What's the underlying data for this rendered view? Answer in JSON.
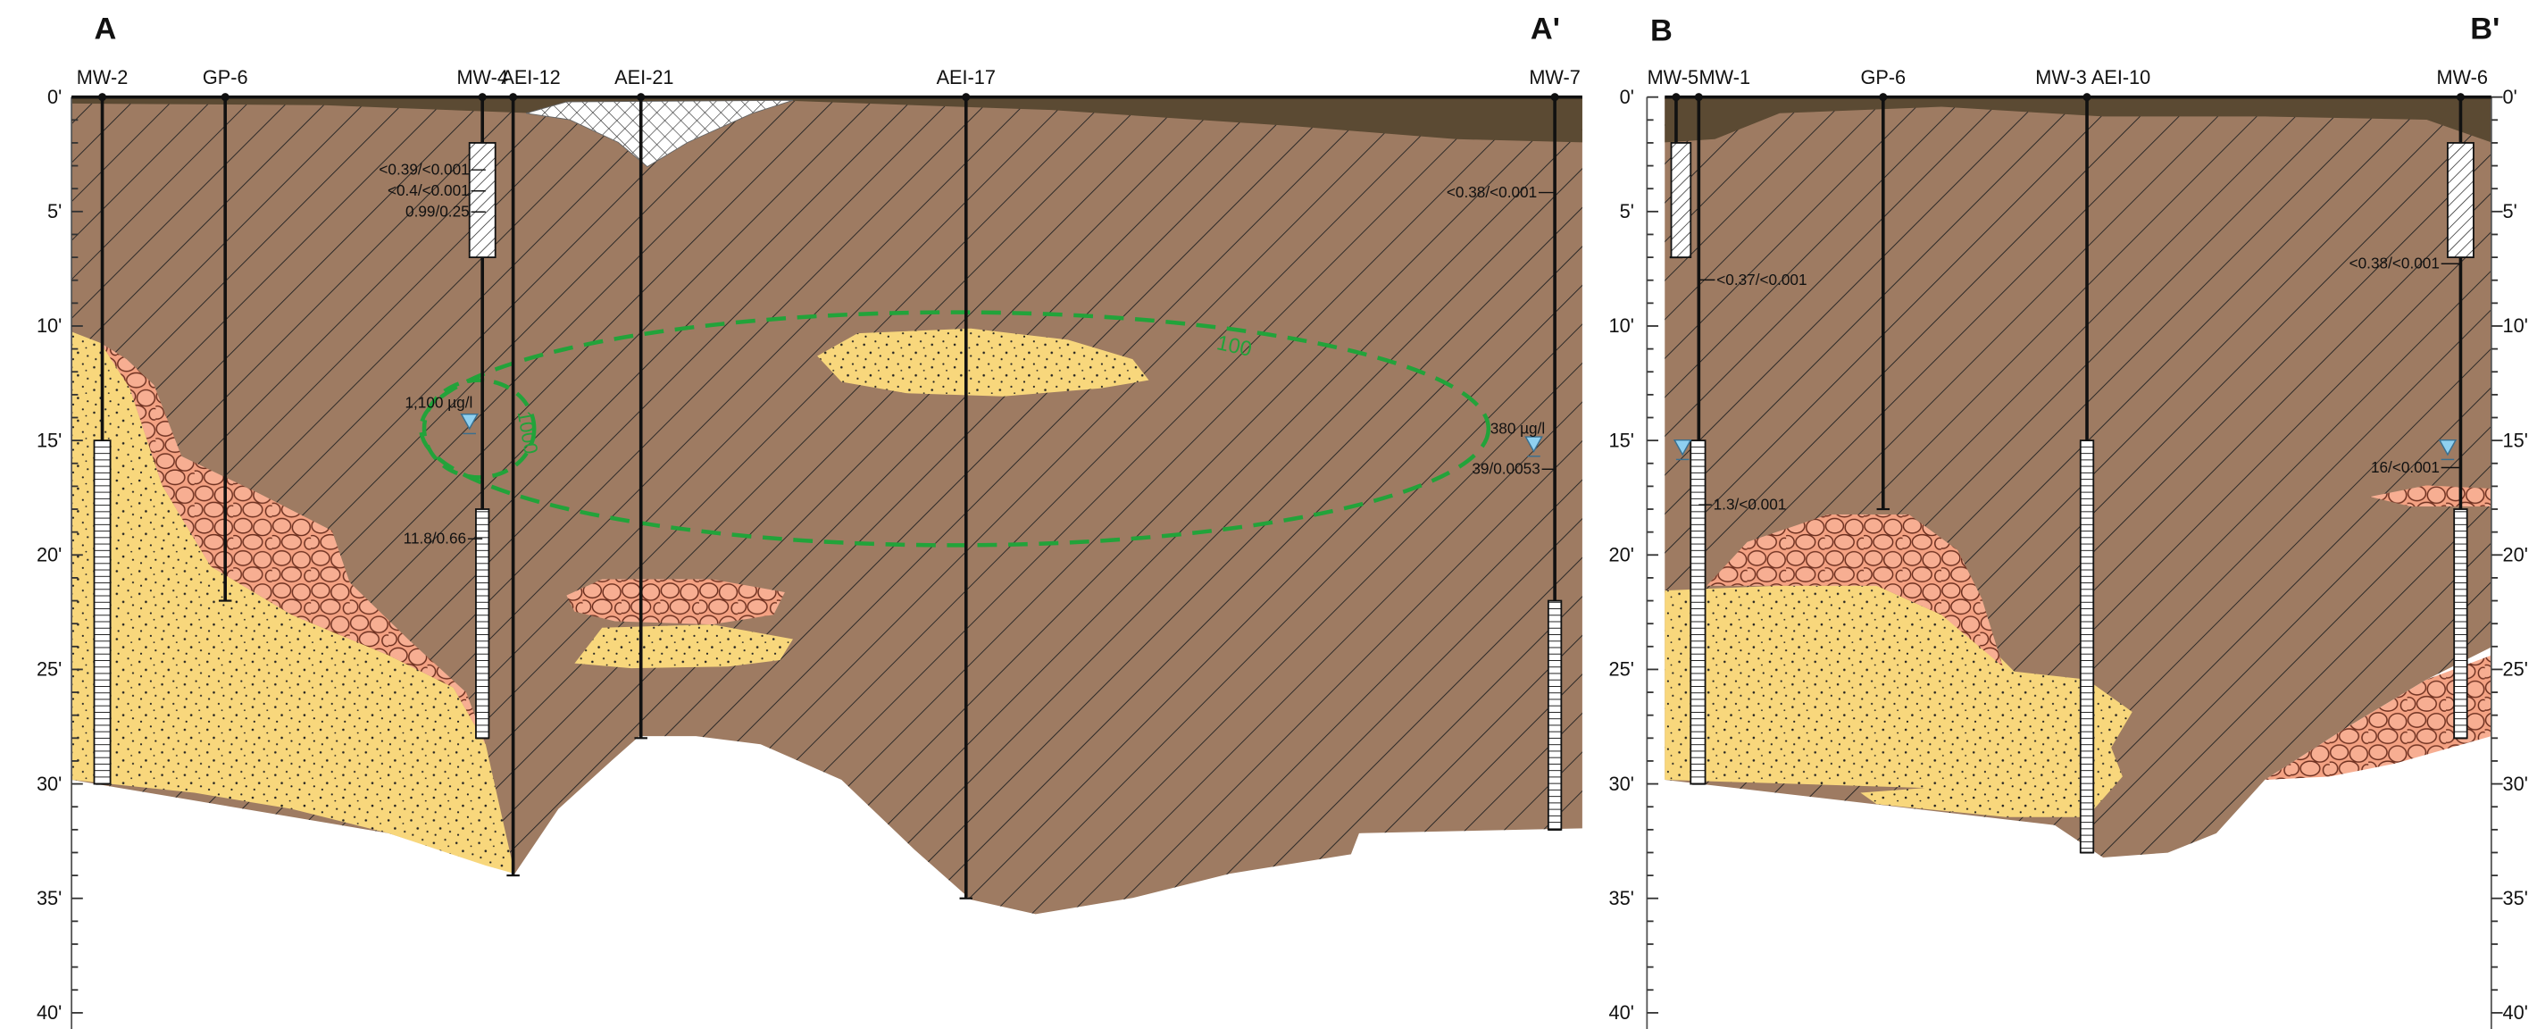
{
  "sections": [
    {
      "start": "A",
      "end": "A'",
      "wells": [
        "MW-2",
        "GP-6",
        "MW-4",
        "AEI-12",
        "AEI-21",
        "AEI-17",
        "MW-7"
      ],
      "depth_labels": [
        "0'",
        "5'",
        "10'",
        "15'",
        "20'",
        "25'",
        "30'",
        "35'",
        "40'"
      ],
      "annotations": [
        "<0.39/<0.001",
        "<0.4/<0.001",
        "0.99/0.25",
        "1,100 µg/l",
        "11.8/0.66",
        "<0.38/<0.001",
        "380 µg/l",
        "39/0.0053"
      ],
      "contours": [
        "100",
        "1000"
      ]
    },
    {
      "start": "B",
      "end": "B'",
      "wells": [
        "MW-5",
        "MW-1",
        "GP-6",
        "MW-3",
        "AEI-10",
        "MW-6"
      ],
      "depth_labels": [
        "0'",
        "5'",
        "10'",
        "15'",
        "20'",
        "25'",
        "30'",
        "35'",
        "40'"
      ],
      "right_depth_labels": [
        "0'",
        "5'",
        "10'",
        "15'",
        "20'",
        "25'",
        "30'",
        "35'",
        "40'"
      ],
      "annotations": [
        "<0.37/<0.001",
        "1.3/<0.001",
        "<0.38/<0.001",
        "16/<0.001"
      ]
    }
  ]
}
